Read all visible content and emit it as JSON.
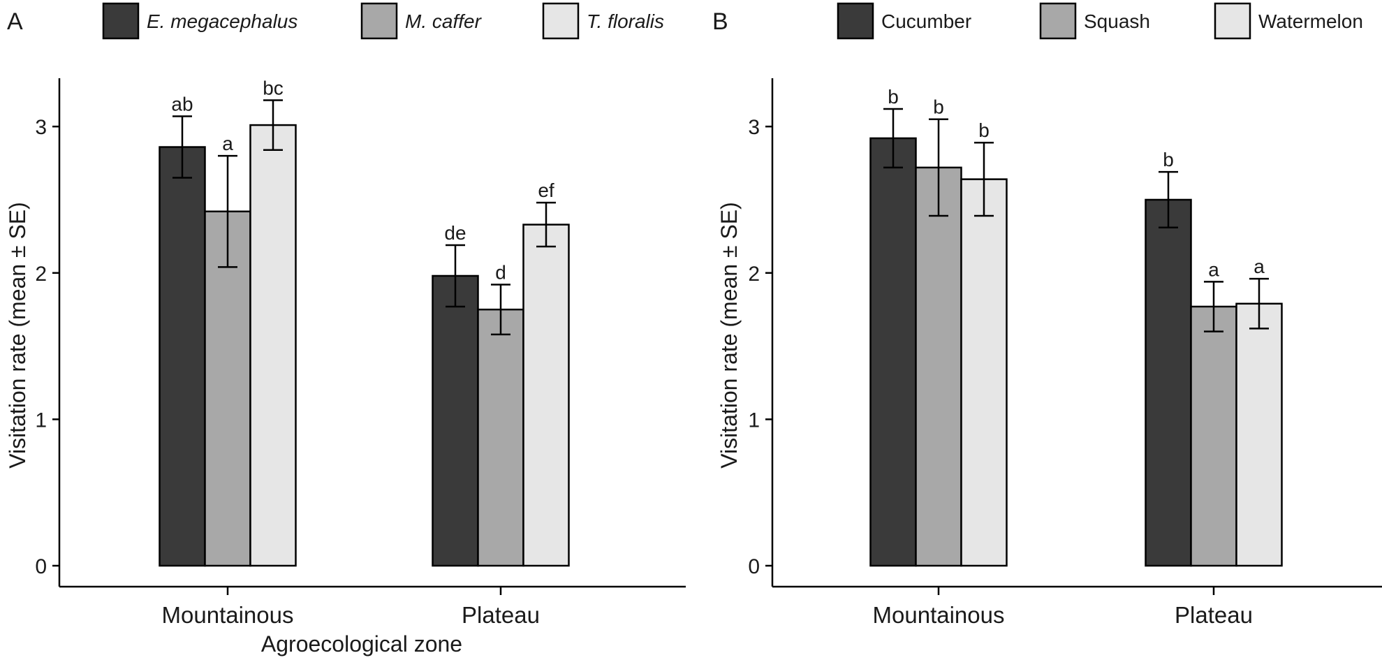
{
  "chart_data": [
    {
      "panel": "A",
      "type": "bar",
      "categories": [
        "Mountainous",
        "Plateau"
      ],
      "series": [
        {
          "name": "E. megacephalus",
          "color": "#3a3a3a",
          "values": [
            2.86,
            1.98
          ],
          "se": [
            0.21,
            0.21
          ],
          "labels": [
            "ab",
            "de"
          ]
        },
        {
          "name": "M. caffer",
          "color": "#a8a8a8",
          "values": [
            2.42,
            1.75
          ],
          "se": [
            0.38,
            0.17
          ],
          "labels": [
            "a",
            "d"
          ]
        },
        {
          "name": "T. floralis",
          "color": "#e6e6e6",
          "values": [
            3.01,
            2.33
          ],
          "se": [
            0.17,
            0.15
          ],
          "labels": [
            "bc",
            "ef"
          ]
        }
      ],
      "legend_italic": true,
      "ylabel": "Visitation rate (mean ± SE)",
      "xlabel": "Agroecological zone",
      "ylim": [
        0,
        3.33
      ],
      "yticks": [
        0,
        1,
        2,
        3
      ],
      "legend_position": "top",
      "grid": false
    },
    {
      "panel": "B",
      "type": "bar",
      "categories": [
        "Mountainous",
        "Plateau"
      ],
      "series": [
        {
          "name": "Cucumber",
          "color": "#3a3a3a",
          "values": [
            2.92,
            2.5
          ],
          "se": [
            0.2,
            0.19
          ],
          "labels": [
            "b",
            "b"
          ]
        },
        {
          "name": "Squash",
          "color": "#a8a8a8",
          "values": [
            2.72,
            1.77
          ],
          "se": [
            0.33,
            0.17
          ],
          "labels": [
            "b",
            "a"
          ]
        },
        {
          "name": "Watermelon",
          "color": "#e6e6e6",
          "values": [
            2.64,
            1.79
          ],
          "se": [
            0.25,
            0.17
          ],
          "labels": [
            "b",
            "a"
          ]
        }
      ],
      "legend_italic": false,
      "ylabel": "Visitation rate (mean ± SE)",
      "xlabel": "",
      "ylim": [
        0,
        3.33
      ],
      "yticks": [
        0,
        1,
        2,
        3
      ],
      "legend_position": "top",
      "grid": false
    }
  ]
}
